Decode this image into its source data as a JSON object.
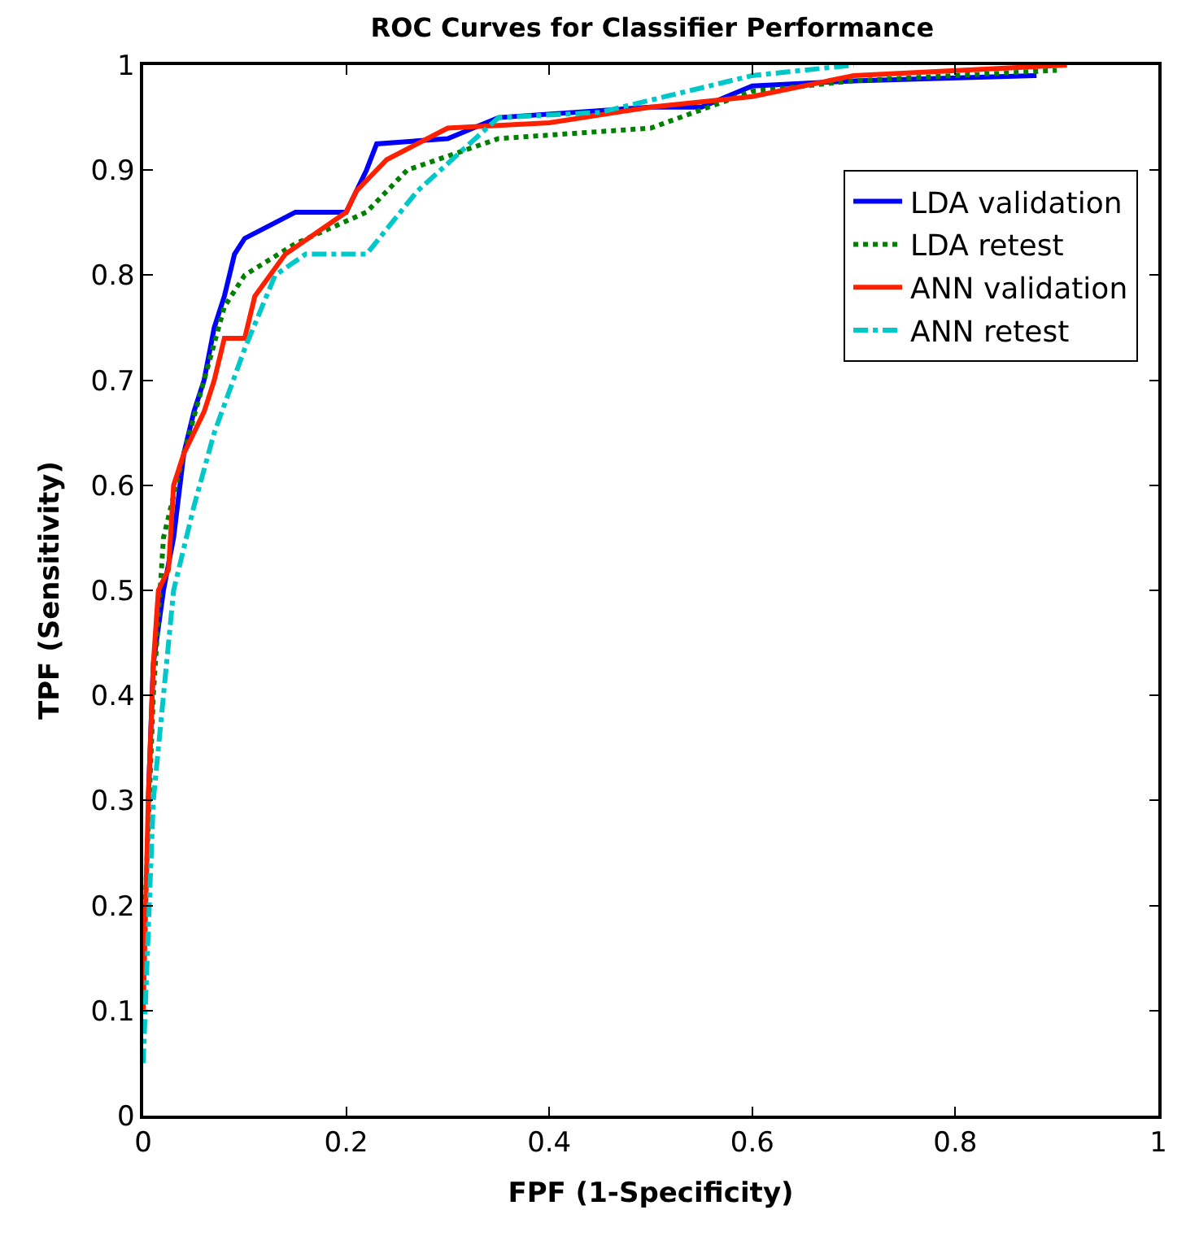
{
  "chart_data": {
    "type": "line",
    "title": "ROC Curves for Classifier Performance",
    "xlabel": "FPF (1-Specificity)",
    "ylabel": "TPF (Sensitivity)",
    "xlim": [
      0,
      1
    ],
    "xticks": [
      0,
      0.2,
      0.4,
      0.6,
      0.8,
      1
    ],
    "ylim": [
      0,
      1
    ],
    "yticks": [
      0,
      0.1,
      0.2,
      0.3,
      0.4,
      0.5,
      0.6,
      0.7,
      0.8,
      0.9,
      1
    ],
    "legend": "top right",
    "series": [
      {
        "name": "LDA validation",
        "color": "#0000ff",
        "line_style": "solid",
        "x": [
          0.005,
          0.01,
          0.02,
          0.03,
          0.04,
          0.05,
          0.06,
          0.07,
          0.08,
          0.09,
          0.1,
          0.13,
          0.15,
          0.2,
          0.22,
          0.23,
          0.3,
          0.35,
          0.5,
          0.55,
          0.6,
          0.7,
          0.88
        ],
        "values": [
          0.3,
          0.43,
          0.5,
          0.55,
          0.63,
          0.67,
          0.7,
          0.75,
          0.78,
          0.82,
          0.835,
          0.85,
          0.86,
          0.86,
          0.9,
          0.925,
          0.93,
          0.95,
          0.96,
          0.96,
          0.98,
          0.985,
          0.99
        ]
      },
      {
        "name": "LDA retest",
        "color": "#008000",
        "line_style": "dotted",
        "x": [
          0,
          0.01,
          0.02,
          0.04,
          0.06,
          0.08,
          0.1,
          0.15,
          0.22,
          0.26,
          0.35,
          0.5,
          0.6,
          0.7,
          0.9
        ],
        "values": [
          0.15,
          0.4,
          0.55,
          0.63,
          0.7,
          0.77,
          0.8,
          0.83,
          0.86,
          0.9,
          0.93,
          0.94,
          0.975,
          0.985,
          0.995
        ]
      },
      {
        "name": "ANN validation",
        "color": "#ff2000",
        "line_style": "solid",
        "x": [
          0,
          0.005,
          0.01,
          0.015,
          0.025,
          0.03,
          0.04,
          0.06,
          0.07,
          0.08,
          0.1,
          0.11,
          0.14,
          0.2,
          0.21,
          0.24,
          0.3,
          0.4,
          0.5,
          0.6,
          0.7,
          0.91
        ],
        "values": [
          0.1,
          0.3,
          0.43,
          0.5,
          0.52,
          0.6,
          0.63,
          0.67,
          0.7,
          0.74,
          0.74,
          0.78,
          0.82,
          0.86,
          0.88,
          0.91,
          0.94,
          0.945,
          0.96,
          0.97,
          0.99,
          1.0
        ]
      },
      {
        "name": "ANN retest",
        "color": "#00c8c8",
        "line_style": "dashed",
        "x": [
          0,
          0.01,
          0.02,
          0.03,
          0.05,
          0.07,
          0.1,
          0.13,
          0.16,
          0.22,
          0.27,
          0.35,
          0.45,
          0.6,
          0.7
        ],
        "values": [
          0.05,
          0.3,
          0.4,
          0.5,
          0.58,
          0.65,
          0.73,
          0.8,
          0.82,
          0.82,
          0.88,
          0.95,
          0.955,
          0.99,
          1.0
        ]
      }
    ]
  }
}
